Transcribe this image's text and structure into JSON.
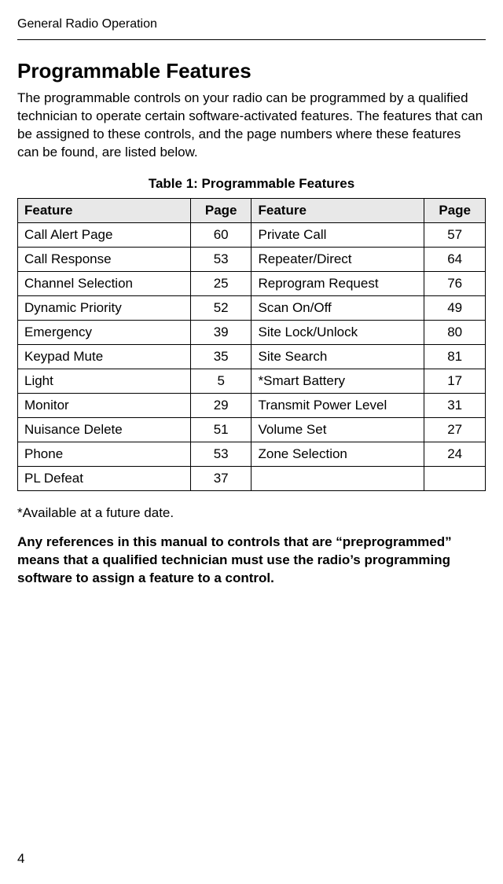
{
  "header": "General Radio Operation",
  "section_title": "Programmable Features",
  "intro": "The programmable controls on your radio can be programmed by a qualified technician to operate certain software-activated features. The features that can be assigned to these controls, and the page numbers where these features can be found, are listed below.",
  "table_caption": "Table 1: Programmable Features",
  "table_headers": {
    "feature": "Feature",
    "page": "Page"
  },
  "rows": [
    {
      "f1": "Call Alert Page",
      "p1": "60",
      "f2": "Private Call",
      "p2": "57"
    },
    {
      "f1": "Call Response",
      "p1": "53",
      "f2": "Repeater/Direct",
      "p2": "64"
    },
    {
      "f1": "Channel Selection",
      "p1": "25",
      "f2": "Reprogram Request",
      "p2": "76"
    },
    {
      "f1": "Dynamic Priority",
      "p1": "52",
      "f2": "Scan On/Off",
      "p2": "49"
    },
    {
      "f1": "Emergency",
      "p1": "39",
      "f2": "Site Lock/Unlock",
      "p2": "80"
    },
    {
      "f1": "Keypad Mute",
      "p1": "35",
      "f2": "Site Search",
      "p2": "81"
    },
    {
      "f1": "Light",
      "p1": "5",
      "f2": "*Smart Battery",
      "p2": "17"
    },
    {
      "f1": "Monitor",
      "p1": "29",
      "f2": "Transmit Power Level",
      "p2": "31"
    },
    {
      "f1": "Nuisance Delete",
      "p1": "51",
      "f2": "Volume Set",
      "p2": "27"
    },
    {
      "f1": "Phone",
      "p1": "53",
      "f2": "Zone Selection",
      "p2": "24"
    },
    {
      "f1": "PL Defeat",
      "p1": "37",
      "f2": "",
      "p2": ""
    }
  ],
  "footnote": "*Available at a future date.",
  "bold_para": "Any references in this manual to controls that are “preprogrammed” means that a qualified technician must use the radio’s programming software to assign a feature to a control.",
  "page_number": "4"
}
